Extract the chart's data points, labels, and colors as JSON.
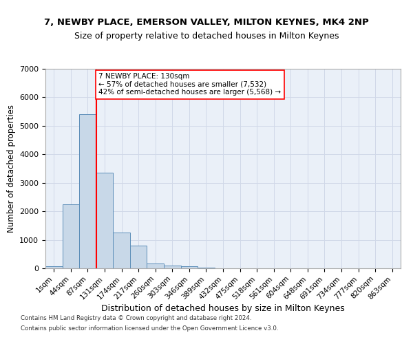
{
  "title_line1": "7, NEWBY PLACE, EMERSON VALLEY, MILTON KEYNES, MK4 2NP",
  "title_line2": "Size of property relative to detached houses in Milton Keynes",
  "xlabel": "Distribution of detached houses by size in Milton Keynes",
  "ylabel": "Number of detached properties",
  "bin_labels": [
    "1sqm",
    "44sqm",
    "87sqm",
    "131sqm",
    "174sqm",
    "217sqm",
    "260sqm",
    "303sqm",
    "346sqm",
    "389sqm",
    "432sqm",
    "475sqm",
    "518sqm",
    "561sqm",
    "604sqm",
    "648sqm",
    "691sqm",
    "734sqm",
    "777sqm",
    "820sqm",
    "863sqm"
  ],
  "bar_values": [
    80,
    2250,
    5400,
    3350,
    1250,
    800,
    170,
    100,
    80,
    20,
    0,
    0,
    0,
    0,
    0,
    0,
    0,
    0,
    0,
    0,
    0
  ],
  "bar_color": "#c8d8e8",
  "bar_edge_color": "#5b8db8",
  "vline_x": 2.5,
  "vline_color": "red",
  "ylim": [
    0,
    7000
  ],
  "yticks": [
    0,
    1000,
    2000,
    3000,
    4000,
    5000,
    6000,
    7000
  ],
  "annotation_text_line1": "7 NEWBY PLACE: 130sqm",
  "annotation_text_line2": "← 57% of detached houses are smaller (7,532)",
  "annotation_text_line3": "42% of semi-detached houses are larger (5,568) →",
  "footer_line1": "Contains HM Land Registry data © Crown copyright and database right 2024.",
  "footer_line2": "Contains public sector information licensed under the Open Government Licence v3.0.",
  "bg_color": "#ffffff",
  "ax_bg_color": "#eaf0f8",
  "grid_color": "#d0d8e8"
}
